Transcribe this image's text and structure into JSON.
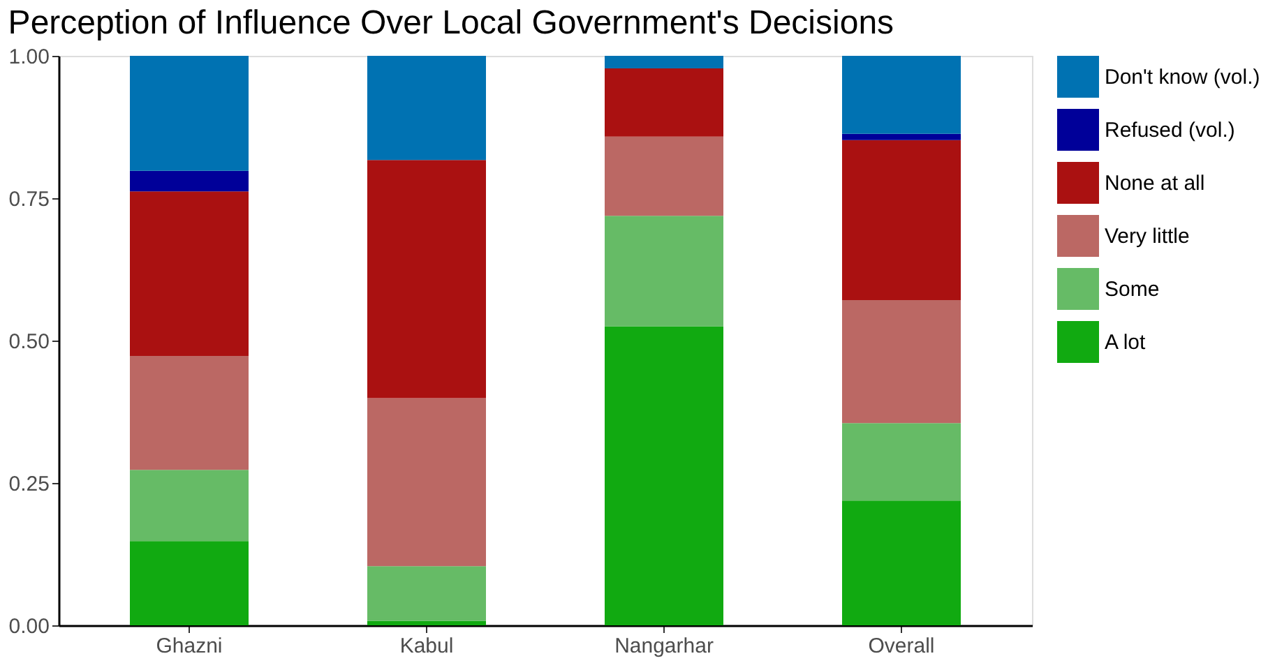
{
  "chart_data": {
    "type": "bar",
    "title": "Perception of Influence Over Local Government's Decisions",
    "categories": [
      "Ghazni",
      "Kabul",
      "Nangarhar",
      "Overall"
    ],
    "stacked": true,
    "series": [
      {
        "name": "A lot",
        "color": "#11aa11",
        "values": [
          0.148,
          0.008,
          0.525,
          0.219
        ]
      },
      {
        "name": "Some",
        "color": "#66bb66",
        "values": [
          0.125,
          0.096,
          0.194,
          0.136
        ]
      },
      {
        "name": "Very little",
        "color": "#bb6864",
        "values": [
          0.2,
          0.295,
          0.139,
          0.216
        ]
      },
      {
        "name": "None at all",
        "color": "#aa1111",
        "values": [
          0.289,
          0.418,
          0.12,
          0.281
        ]
      },
      {
        "name": "Refused (vol.)",
        "color": "#000099",
        "values": [
          0.036,
          0,
          0,
          0.011
        ]
      },
      {
        "name": "Don't know (vol.)",
        "color": "#0072b2",
        "values": [
          0.202,
          0.183,
          0.022,
          0.137
        ]
      }
    ],
    "ylim": [
      0,
      1
    ],
    "yticks": [
      {
        "value": 0,
        "label": "0.00"
      },
      {
        "value": 0.25,
        "label": "0.25"
      },
      {
        "value": 0.5,
        "label": "0.50"
      },
      {
        "value": 0.75,
        "label": "0.75"
      },
      {
        "value": 1,
        "label": "1.00"
      }
    ],
    "grid": false,
    "legend": "right"
  }
}
